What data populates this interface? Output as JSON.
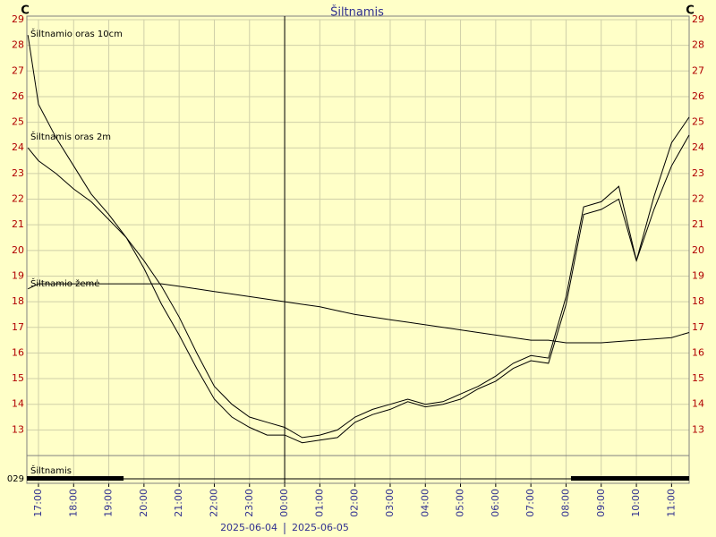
{
  "chart_data": {
    "type": "line",
    "title": "Šiltnamis",
    "y_unit_left": "C",
    "y_unit_right": "C",
    "dates": [
      "2025-06-04",
      "2025-06-05"
    ],
    "date_divider": 24,
    "x": [
      16.7,
      17,
      17.5,
      18,
      18.5,
      19,
      19.5,
      20,
      20.5,
      21,
      21.5,
      22,
      22.5,
      23,
      23.5,
      24,
      24.5,
      25,
      25.5,
      26,
      26.5,
      27,
      27.5,
      28,
      28.5,
      29,
      29.5,
      30,
      30.5,
      31,
      31.5,
      32,
      32.5,
      33,
      33.5,
      34,
      34.5,
      35,
      35.5
    ],
    "series": [
      {
        "name": "Šiltnamio oras 10cm",
        "color": "#000000",
        "values": [
          28.4,
          25.7,
          24.4,
          23.3,
          22.2,
          21.4,
          20.5,
          19.6,
          18.6,
          17.4,
          16,
          14.7,
          14,
          13.5,
          13.3,
          13.1,
          12.7,
          12.8,
          13,
          13.5,
          13.8,
          14,
          14.2,
          14,
          14.1,
          14.4,
          14.7,
          15.1,
          15.6,
          15.9,
          15.8,
          18.2,
          21.7,
          21.9,
          22.5,
          19.6,
          22.1,
          24.2,
          25.2
        ]
      },
      {
        "name": "Šiltnamis oras 2m",
        "color": "#000000",
        "values": [
          24,
          23.5,
          23,
          22.4,
          21.9,
          21.2,
          20.5,
          19.3,
          17.9,
          16.7,
          15.4,
          14.2,
          13.5,
          13.1,
          12.8,
          12.8,
          12.5,
          12.6,
          12.7,
          13.3,
          13.6,
          13.8,
          14.1,
          13.9,
          14,
          14.2,
          14.6,
          14.9,
          15.4,
          15.7,
          15.6,
          17.9,
          21.4,
          21.6,
          22,
          19.6,
          21.6,
          23.3,
          24.5
        ]
      },
      {
        "name": "Šiltnamio žemė",
        "color": "#000000",
        "values": [
          18.5,
          18.7,
          18.7,
          18.7,
          18.7,
          18.7,
          18.7,
          18.7,
          18.7,
          18.6,
          18.5,
          18.4,
          18.3,
          18.2,
          18.1,
          18.0,
          17.9,
          17.8,
          17.65,
          17.5,
          17.4,
          17.3,
          17.2,
          17.1,
          17.0,
          16.9,
          16.8,
          16.7,
          16.6,
          16.5,
          16.5,
          16.4,
          16.4,
          16.4,
          16.45,
          16.5,
          16.55,
          16.6,
          16.8
        ]
      }
    ],
    "xlim": [
      16.67,
      35.5
    ],
    "xticks": [
      {
        "value": 17,
        "label": "17:00"
      },
      {
        "value": 18,
        "label": "18:00"
      },
      {
        "value": 19,
        "label": "19:00"
      },
      {
        "value": 20,
        "label": "20:00"
      },
      {
        "value": 21,
        "label": "21:00"
      },
      {
        "value": 22,
        "label": "22:00"
      },
      {
        "value": 23,
        "label": "23:00"
      },
      {
        "value": 24,
        "label": "00:00"
      },
      {
        "value": 25,
        "label": "01:00"
      },
      {
        "value": 26,
        "label": "02:00"
      },
      {
        "value": 27,
        "label": "03:00"
      },
      {
        "value": 28,
        "label": "04:00"
      },
      {
        "value": 29,
        "label": "05:00"
      },
      {
        "value": 30,
        "label": "06:00"
      },
      {
        "value": 31,
        "label": "07:00"
      },
      {
        "value": 32,
        "label": "08:00"
      },
      {
        "value": 33,
        "label": "09:00"
      },
      {
        "value": 34,
        "label": "10:00"
      },
      {
        "value": 35,
        "label": "11:00"
      }
    ],
    "ylim": [
      12,
      29
    ],
    "yticks": [
      13,
      14,
      15,
      16,
      17,
      18,
      19,
      20,
      21,
      22,
      23,
      24,
      25,
      26,
      27,
      28,
      29
    ],
    "grid": true,
    "status_bar": {
      "label": "Šiltnamis",
      "code": "029",
      "on_ranges": [
        [
          16.67,
          19.42
        ],
        [
          32.14,
          35.5
        ]
      ]
    }
  }
}
